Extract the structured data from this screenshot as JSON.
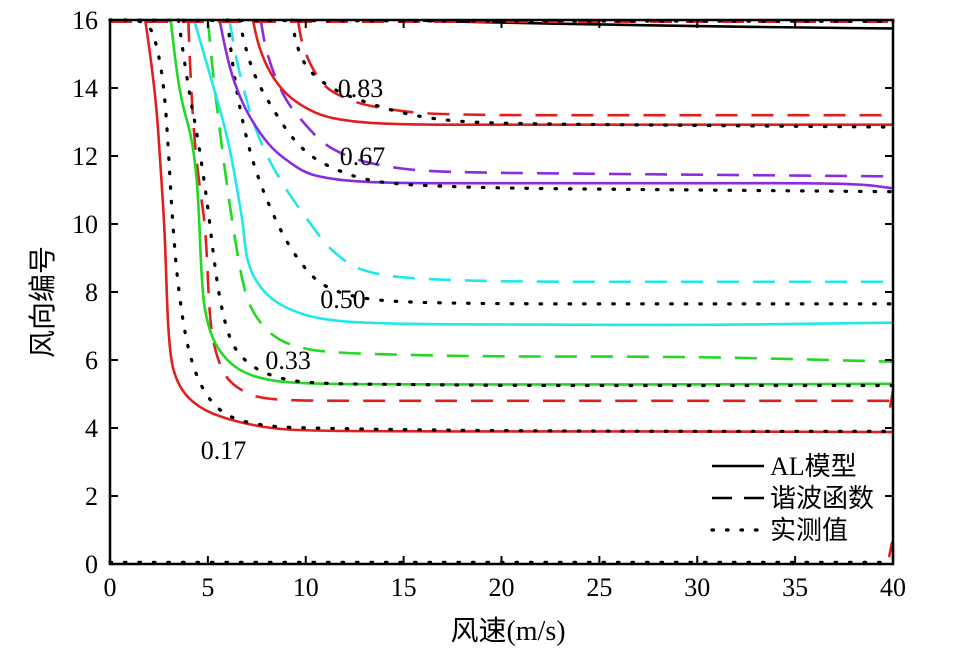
{
  "chart_data": {
    "type": "line",
    "title": "",
    "xlabel": "风速(m/s)",
    "ylabel": "风向编号",
    "xlim": [
      0,
      40
    ],
    "ylim": [
      0,
      16
    ],
    "xticks": [
      "0",
      "5",
      "10",
      "15",
      "20",
      "25",
      "30",
      "35",
      "40"
    ],
    "yticks": [
      "0",
      "2",
      "4",
      "6",
      "8",
      "10",
      "12",
      "14",
      "16"
    ],
    "grid": false,
    "legend_position": "bottom-right",
    "legend": [
      {
        "label": "AL模型",
        "style": "solid"
      },
      {
        "label": "谐波函数",
        "style": "dashed"
      },
      {
        "label": "实测值",
        "style": "dotted"
      }
    ],
    "contour_labels": [
      "0.17",
      "0.33",
      "0.50",
      "0.67",
      "0.83"
    ],
    "series": [
      {
        "level": "0.17",
        "method": "AL模型",
        "style": "solid",
        "color": "#e02020",
        "x": [
          1.8,
          2.1,
          2.4,
          2.6,
          2.8,
          3.0,
          3.5,
          4.5,
          6,
          8,
          10,
          15,
          20,
          30,
          40
        ],
        "y": [
          16,
          14.8,
          13.3,
          11.5,
          9.8,
          6.2,
          5.2,
          4.6,
          4.25,
          4.0,
          3.92,
          3.9,
          3.9,
          3.9,
          3.88
        ]
      },
      {
        "level": "0.17",
        "method": "谐波函数",
        "style": "dashed",
        "color": "#e02020",
        "x": [
          4.0,
          4.1,
          4.3,
          4.6,
          4.9,
          5.1,
          5.5,
          6,
          7,
          8,
          10,
          15,
          20,
          30,
          40
        ],
        "y": [
          16,
          14.5,
          12.5,
          11.0,
          9.8,
          7.0,
          6.0,
          5.4,
          5.0,
          4.85,
          4.8,
          4.8,
          4.8,
          4.8,
          4.8
        ]
      },
      {
        "level": "0.17",
        "method": "实测值",
        "style": "dotted",
        "color": "#000000",
        "x": [
          0.0,
          2.0,
          2.5,
          2.8,
          3.0,
          3.2,
          3.5,
          4.0,
          4.8,
          6,
          8,
          10,
          15,
          20,
          30,
          40
        ],
        "y": [
          16,
          16,
          15,
          13.8,
          12,
          10,
          8,
          6.2,
          5.0,
          4.3,
          4.05,
          4.0,
          3.95,
          3.92,
          3.9,
          3.9
        ]
      },
      {
        "level": "0.33",
        "method": "AL模型",
        "style": "solid",
        "color": "#22d822",
        "x": [
          3.1,
          3.4,
          3.7,
          4.2,
          4.5,
          4.7,
          5.0,
          5.5,
          6.5,
          8,
          10,
          15,
          20,
          30,
          40
        ],
        "y": [
          16,
          14.5,
          13.5,
          12.5,
          11.0,
          8.0,
          7.0,
          6.3,
          5.7,
          5.4,
          5.3,
          5.28,
          5.28,
          5.28,
          5.3
        ]
      },
      {
        "level": "0.33",
        "method": "谐波函数",
        "style": "dashed",
        "color": "#22d822",
        "x": [
          5.0,
          5.3,
          5.6,
          6.0,
          6.4,
          6.7,
          7.0,
          7.5,
          8.5,
          10,
          12,
          15,
          20,
          30,
          40
        ],
        "y": [
          16,
          14.2,
          12.8,
          11.0,
          9.5,
          8.5,
          7.8,
          7.2,
          6.6,
          6.3,
          6.2,
          6.15,
          6.1,
          6.1,
          5.95
        ]
      },
      {
        "level": "0.33",
        "method": "实测值",
        "style": "dotted",
        "color": "#000000",
        "x": [
          3.5,
          4.0,
          4.5,
          5.0,
          5.3,
          5.6,
          6.0,
          6.5,
          7.5,
          9,
          11,
          15,
          20,
          30,
          40
        ],
        "y": [
          16,
          14.0,
          12.5,
          10.5,
          9.0,
          7.8,
          6.8,
          6.2,
          5.7,
          5.4,
          5.3,
          5.28,
          5.25,
          5.25,
          5.25
        ]
      },
      {
        "level": "0.50",
        "method": "AL模型",
        "style": "solid",
        "color": "#20e8e8",
        "x": [
          4.3,
          4.8,
          5.3,
          5.8,
          6.2,
          6.5,
          6.8,
          7.0,
          7.8,
          9,
          11,
          15,
          20,
          30,
          40
        ],
        "y": [
          16,
          15.0,
          14.0,
          13.0,
          12.0,
          11.0,
          10.0,
          8.8,
          8.0,
          7.5,
          7.15,
          7.05,
          7.05,
          7.02,
          7.1
        ]
      },
      {
        "level": "0.50",
        "method": "谐波函数",
        "style": "dashed",
        "color": "#20e8e8",
        "x": [
          6.1,
          6.4,
          6.8,
          7.3,
          8.0,
          9.0,
          10.0,
          11.0,
          12.0,
          13.0,
          15,
          20,
          30,
          40
        ],
        "y": [
          16,
          15.0,
          14.0,
          13.0,
          12.0,
          11.0,
          10.2,
          9.4,
          8.9,
          8.6,
          8.4,
          8.3,
          8.3,
          8.3
        ]
      },
      {
        "level": "0.50",
        "method": "实测值",
        "style": "dotted",
        "color": "#000000",
        "x": [
          6.0,
          6.3,
          6.7,
          7.2,
          7.8,
          8.4,
          9.0,
          9.8,
          10.6,
          11.6,
          13,
          15,
          20,
          30,
          40
        ],
        "y": [
          16,
          14.5,
          13.2,
          12.0,
          11.0,
          10.2,
          9.5,
          8.8,
          8.3,
          8.0,
          7.8,
          7.7,
          7.65,
          7.65,
          7.65
        ]
      },
      {
        "level": "0.67",
        "method": "AL模型",
        "style": "solid",
        "color": "#8a2be2",
        "x": [
          5.6,
          5.8,
          6.2,
          6.8,
          7.5,
          8.3,
          9.2,
          10.0,
          11.0,
          12.5,
          15,
          20,
          30,
          38,
          40
        ],
        "y": [
          16,
          15.4,
          14.4,
          13.5,
          12.8,
          12.2,
          11.8,
          11.5,
          11.35,
          11.25,
          11.2,
          11.2,
          11.2,
          11.2,
          11.05
        ]
      },
      {
        "level": "0.67",
        "method": "谐波函数",
        "style": "dashed",
        "color": "#8a2be2",
        "x": [
          7.7,
          7.9,
          8.3,
          9.0,
          10.0,
          11.0,
          12.5,
          14.0,
          16.0,
          20,
          30,
          40
        ],
        "y": [
          16,
          15.3,
          14.5,
          13.6,
          12.9,
          12.3,
          11.9,
          11.7,
          11.55,
          11.5,
          11.45,
          11.4
        ]
      },
      {
        "level": "0.67",
        "method": "实测值",
        "style": "dotted",
        "color": "#000000",
        "x": [
          6.6,
          7.0,
          7.5,
          8.3,
          9.2,
          10.2,
          11.5,
          13.0,
          15.0,
          20,
          30,
          40
        ],
        "y": [
          16,
          15.0,
          14.2,
          13.4,
          12.6,
          12.0,
          11.6,
          11.3,
          11.15,
          11.05,
          11.0,
          10.95
        ]
      },
      {
        "level": "0.83",
        "method": "AL模型",
        "style": "solid",
        "color": "#e02020",
        "x": [
          7.3,
          7.6,
          8.2,
          9.0,
          10.0,
          11.0,
          12.5,
          14.0,
          16.0,
          20,
          30,
          40
        ],
        "y": [
          16,
          15.2,
          14.4,
          13.8,
          13.4,
          13.15,
          13.0,
          12.95,
          12.92,
          12.92,
          12.92,
          12.92
        ]
      },
      {
        "level": "0.83",
        "method": "谐波函数",
        "style": "dashed",
        "color": "#e02020",
        "x": [
          9.6,
          9.8,
          10.3,
          11.0,
          12.0,
          13.0,
          14.5,
          16.0,
          18.0,
          20,
          30,
          40
        ],
        "y": [
          16,
          15.3,
          14.6,
          14.0,
          13.7,
          13.5,
          13.35,
          13.25,
          13.22,
          13.2,
          13.2,
          13.2
        ]
      },
      {
        "level": "0.83",
        "method": "实测值",
        "style": "dotted",
        "color": "#000000",
        "x": [
          9.3,
          9.5,
          10.0,
          11.0,
          12.0,
          13.5,
          15.0,
          17.0,
          20,
          30,
          40
        ],
        "y": [
          16,
          15.3,
          14.6,
          14.1,
          13.8,
          13.5,
          13.25,
          13.05,
          12.95,
          12.9,
          12.85
        ]
      },
      {
        "level": "0.83",
        "method": "AL模型",
        "style": "solid",
        "color": "#000000",
        "x": [
          16,
          20,
          25,
          30,
          35,
          40
        ],
        "y": [
          15.98,
          15.92,
          15.87,
          15.82,
          15.78,
          15.75
        ]
      },
      {
        "level": "",
        "method": "谐波函数",
        "style": "dashed",
        "color": "#e02020",
        "x": [
          0,
          10,
          20,
          30,
          40
        ],
        "y": [
          15.95,
          15.95,
          15.95,
          15.95,
          15.95
        ]
      },
      {
        "level": "",
        "method": "实测值",
        "style": "dotted",
        "color": "#000000",
        "x": [
          0,
          10,
          20,
          30,
          40
        ],
        "y": [
          16,
          15.98,
          15.97,
          15.97,
          15.96
        ]
      },
      {
        "level": "",
        "method": "实测值",
        "style": "dotted",
        "color": "#000000",
        "x": [
          0,
          10,
          20,
          30,
          40
        ],
        "y": [
          0.05,
          0.05,
          0.05,
          0.05,
          0.05
        ]
      },
      {
        "level": "",
        "method": "AL模型",
        "style": "solid",
        "color": "#e02020",
        "x": [
          39.8,
          40,
          40
        ],
        "y": [
          0.2,
          0.8,
          0.1
        ]
      },
      {
        "level": "",
        "method": "AL模型",
        "style": "solid",
        "color": "#e02020",
        "x": [
          39.85,
          40
        ],
        "y": [
          4.6,
          5.1
        ]
      }
    ]
  }
}
